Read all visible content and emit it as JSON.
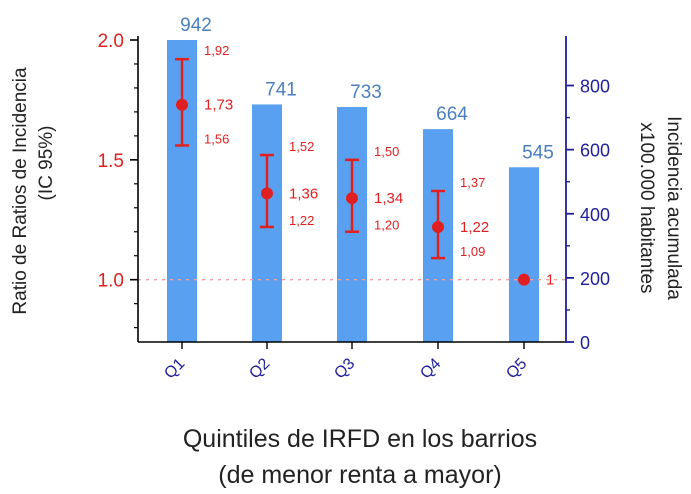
{
  "chart_data": {
    "type": "bar",
    "categories": [
      "Q1",
      "Q2",
      "Q3",
      "Q4",
      "Q5"
    ],
    "bar_series": {
      "values": [
        942,
        741,
        733,
        664,
        545
      ],
      "labels": [
        "942",
        "741",
        "733",
        "664",
        "545"
      ],
      "color": "#5aa0f0",
      "label_color": "#4a7fc0"
    },
    "point_series": {
      "estimates": [
        1.73,
        1.36,
        1.34,
        1.22,
        1.0
      ],
      "lower": [
        1.56,
        1.22,
        1.2,
        1.09,
        null
      ],
      "upper": [
        1.92,
        1.52,
        1.5,
        1.37,
        null
      ],
      "estimate_labels": [
        "1,73",
        "1,36",
        "1,34",
        "1,22",
        "1"
      ],
      "lower_labels": [
        "1,56",
        "1,22",
        "1,20",
        "1,09",
        ""
      ],
      "upper_labels": [
        "1,92",
        "1,52",
        "1,50",
        "1,37",
        ""
      ],
      "color": "#e02020"
    },
    "y_left": {
      "label_lines": [
        "Ratio de Ratios de Incidencia",
        "(IC 95%)"
      ],
      "ticks": [
        1.0,
        1.5,
        2.0
      ],
      "tick_labels": [
        "1.0",
        "1.5",
        "2.0"
      ],
      "range": [
        0.74,
        2.0
      ],
      "reference_line": 1.0,
      "color": "#e02020"
    },
    "y_right": {
      "label_lines": [
        "Incidencia acumulada",
        "x100.000 habitantes"
      ],
      "ticks": [
        0,
        200,
        400,
        600,
        800
      ],
      "tick_labels": [
        "0",
        "200",
        "400",
        "600",
        "800"
      ],
      "range": [
        0,
        942
      ],
      "color": "#1f1f9a"
    },
    "xlabel_lines": [
      "Quintiles de IRFD en los barrios",
      "(de menor renta a mayor)"
    ],
    "grid": false,
    "legend": "none"
  }
}
